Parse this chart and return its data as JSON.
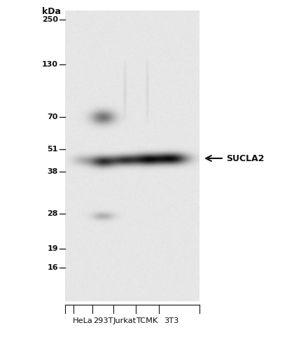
{
  "fig_bg_color": "#ffffff",
  "gel_bg_color": "#e8e6e3",
  "kda_label": "kDa",
  "mw_markers": [
    250,
    130,
    70,
    51,
    38,
    28,
    19,
    16
  ],
  "lane_labels": [
    "HeLa",
    "293T",
    "Jurkat",
    "TCMK",
    "3T3"
  ],
  "sucla2_label": "SUCLA2",
  "arrow_color": "#111111",
  "band_color": "#111111",
  "text_color": "#111111"
}
